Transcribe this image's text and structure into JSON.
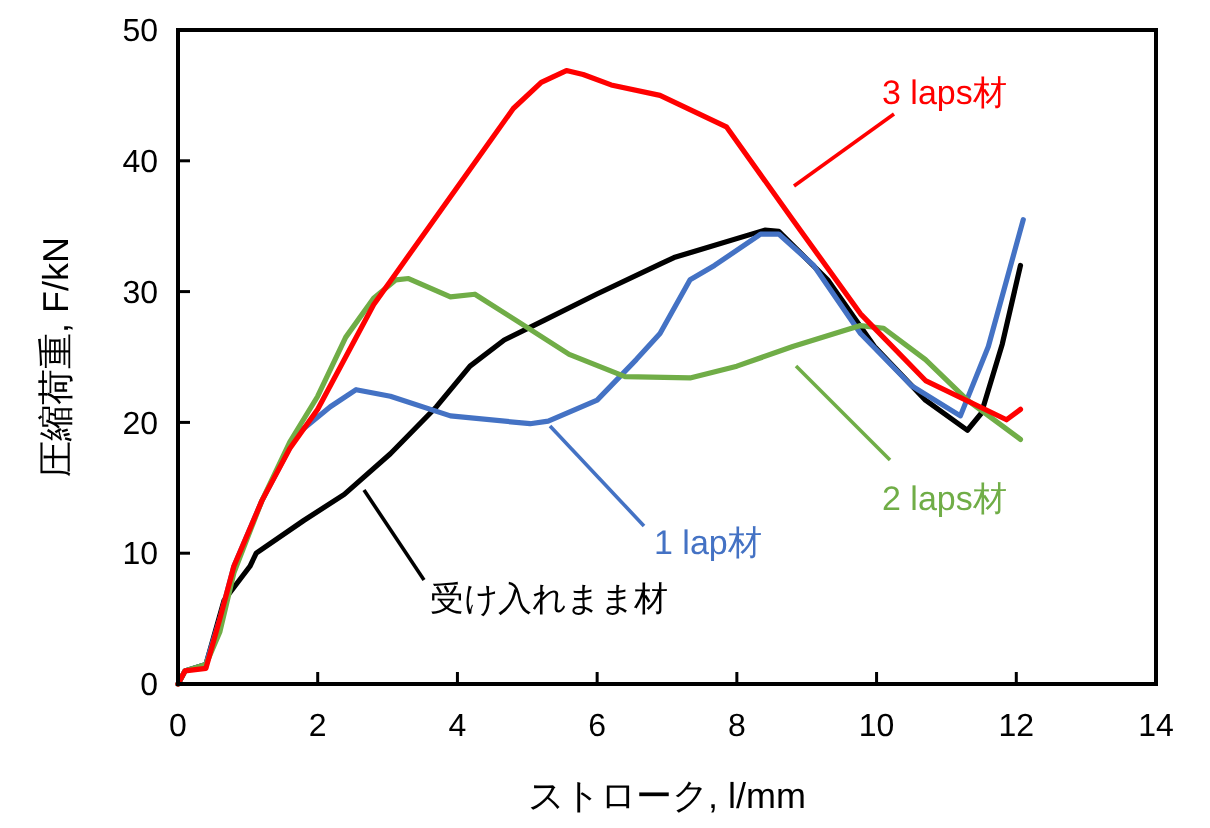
{
  "chart_data": {
    "type": "line",
    "xlabel": "ストローク, l/mm",
    "ylabel": "圧縮荷重, F/kN",
    "xlim": [
      0,
      14
    ],
    "xticks": [
      0,
      2,
      4,
      6,
      8,
      10,
      12,
      14
    ],
    "ylim": [
      0,
      50
    ],
    "yticks": [
      0,
      10,
      20,
      30,
      40,
      50
    ],
    "grid": false,
    "marker": "none",
    "line_style": "solid",
    "series": [
      {
        "name": "受け入れまま材",
        "color": "#000000",
        "x": [
          0,
          0.1,
          0.4,
          0.66,
          1.03,
          1.12,
          1.8,
          2.38,
          3.04,
          3.7,
          4.18,
          4.67,
          5.24,
          5.99,
          6.9,
          7.1,
          8.4,
          8.6,
          9.3,
          9.97,
          10.7,
          11.3,
          11.5,
          11.8,
          12.06
        ],
        "values": [
          0,
          1,
          1.5,
          6.4,
          9,
          10,
          12.5,
          14.5,
          17.6,
          21.2,
          24.3,
          26.3,
          27.8,
          29.8,
          32.1,
          32.6,
          34.7,
          34.6,
          30.9,
          25.8,
          21.7,
          19.4,
          20.7,
          26,
          32
        ]
      },
      {
        "name": "1 lap材",
        "color": "#4472c4",
        "x": [
          0,
          0.1,
          0.4,
          0.6,
          0.8,
          1.2,
          1.7,
          2.18,
          2.55,
          3.04,
          3.9,
          5.04,
          5.3,
          6,
          6.56,
          6.9,
          7.33,
          7.68,
          8.34,
          8.6,
          9.1,
          9.77,
          10.5,
          11.2,
          11.6,
          12.1
        ],
        "values": [
          0,
          1,
          1.5,
          5,
          9,
          14,
          19.1,
          21.2,
          22.5,
          22,
          20.5,
          19.9,
          20.1,
          21.7,
          24.8,
          26.8,
          30.9,
          32,
          34.4,
          34.4,
          32,
          26.8,
          22.8,
          20.5,
          25.8,
          35.5
        ]
      },
      {
        "name": "2 laps材",
        "color": "#70ad47",
        "x": [
          0,
          0.1,
          0.4,
          0.6,
          0.8,
          1.2,
          1.6,
          2,
          2.4,
          2.8,
          3.12,
          3.3,
          3.9,
          4.25,
          4.84,
          5.6,
          6.4,
          7.33,
          8,
          8.8,
          9.77,
          10.1,
          10.7,
          11.3,
          12.06
        ],
        "values": [
          0,
          1,
          1.5,
          4,
          8.5,
          14,
          18.5,
          22,
          26.5,
          29.5,
          30.9,
          31,
          29.6,
          29.8,
          27.8,
          25.2,
          23.5,
          23.4,
          24.3,
          25.8,
          27.4,
          27.2,
          24.8,
          21.7,
          18.7
        ]
      },
      {
        "name": "3 laps材",
        "color": "#ff0000",
        "x": [
          0,
          0.1,
          0.4,
          0.6,
          0.8,
          1.2,
          1.6,
          2,
          2.4,
          2.8,
          3.2,
          3.6,
          4,
          4.4,
          4.8,
          5.2,
          5.56,
          5.8,
          6.2,
          6.9,
          7.85,
          8.8,
          9.77,
          10.7,
          11.86,
          12.06
        ],
        "values": [
          0,
          1,
          1.2,
          5,
          9,
          14,
          18,
          21,
          25,
          29,
          32,
          35,
          38,
          41,
          44,
          46,
          46.9,
          46.6,
          45.8,
          45,
          42.6,
          35.5,
          28.3,
          23.2,
          20.2,
          21
        ]
      }
    ]
  }
}
